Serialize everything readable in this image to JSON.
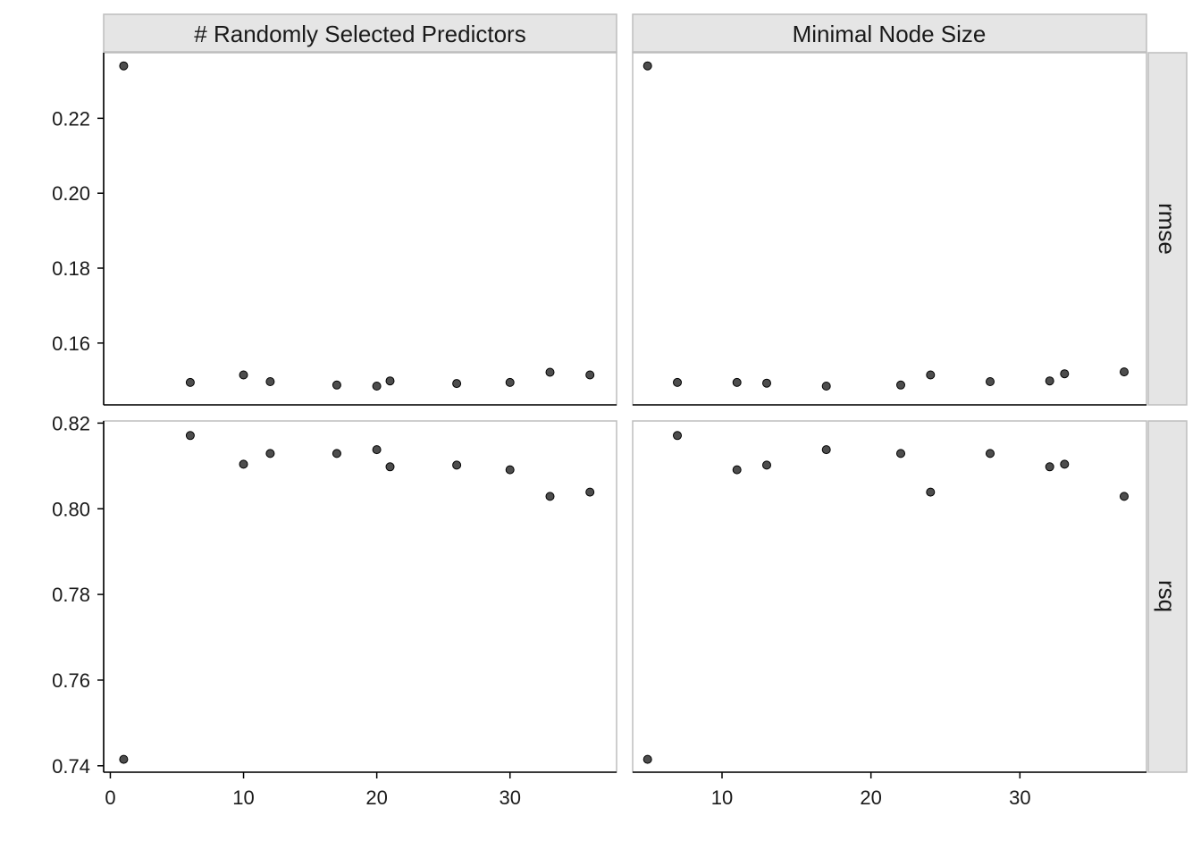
{
  "chart_data": {
    "type": "scatter",
    "facet_columns": [
      "# Randomly Selected Predictors",
      "Minimal Node Size"
    ],
    "facet_rows": [
      "rmse",
      "rsq"
    ],
    "scales": "free",
    "x_axes": [
      {
        "range": [
          -0.5,
          38
        ],
        "ticks": [
          0,
          10,
          20,
          30
        ]
      },
      {
        "range": [
          4,
          38.5
        ],
        "ticks": [
          10,
          20,
          30
        ]
      }
    ],
    "y_axes": [
      {
        "range": [
          0.1435,
          0.2375
        ],
        "ticks": [
          0.16,
          0.18,
          0.2,
          0.22
        ],
        "tick_labels": [
          "0.16",
          "0.18",
          "0.20",
          "0.22"
        ]
      },
      {
        "range": [
          0.7385,
          0.8205
        ],
        "ticks": [
          0.74,
          0.76,
          0.78,
          0.8,
          0.82
        ],
        "tick_labels": [
          "0.74",
          "0.76",
          "0.78",
          "0.80",
          "0.82"
        ]
      }
    ],
    "panels": [
      {
        "col": 0,
        "row": 0,
        "x": [
          1,
          6,
          10,
          12,
          17,
          20,
          21,
          26,
          30,
          33,
          36
        ],
        "y": [
          0.234,
          0.1495,
          0.1515,
          0.1497,
          0.1488,
          0.1485,
          0.1499,
          0.1492,
          0.1495,
          0.1522,
          0.1515
        ]
      },
      {
        "col": 1,
        "row": 0,
        "x": [
          5,
          7,
          11,
          13,
          17,
          22,
          24,
          28,
          32,
          33,
          37
        ],
        "y": [
          0.234,
          0.1495,
          0.1495,
          0.1493,
          0.1485,
          0.1488,
          0.1515,
          0.1497,
          0.1499,
          0.1518,
          0.1523
        ]
      },
      {
        "col": 0,
        "row": 1,
        "x": [
          1,
          6,
          10,
          12,
          17,
          20,
          21,
          26,
          30,
          33,
          36
        ],
        "y": [
          0.7415,
          0.8171,
          0.8104,
          0.8129,
          0.8129,
          0.8138,
          0.8098,
          0.8102,
          0.8091,
          0.8029,
          0.8039
        ]
      },
      {
        "col": 1,
        "row": 1,
        "x": [
          5,
          7,
          11,
          13,
          17,
          22,
          24,
          28,
          32,
          33,
          37
        ],
        "y": [
          0.7415,
          0.8171,
          0.8091,
          0.8102,
          0.8138,
          0.8129,
          0.8039,
          0.8129,
          0.8098,
          0.8104,
          0.8029
        ]
      }
    ],
    "point_color": "#4d4d4d",
    "strip_fill": "#e5e5e5",
    "panel_border_color": "#bdbdbd"
  }
}
